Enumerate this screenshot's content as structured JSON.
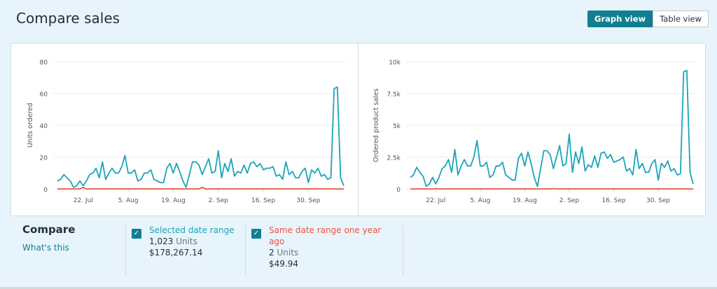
{
  "header": {
    "title": "Compare sales",
    "graph_view": "Graph view",
    "table_view": "Table view",
    "active_view": "Graph view"
  },
  "colors": {
    "current": "#1aa5b8",
    "prior": "#e8553e",
    "accent": "#117f91"
  },
  "chart_data": [
    {
      "type": "line",
      "ylabel": "Units ordered",
      "ylim": [
        0,
        80
      ],
      "yticks": [
        "0",
        "20",
        "40",
        "60",
        "80"
      ],
      "yvalues": [
        0,
        20,
        40,
        60,
        80
      ],
      "x_start": "2019-07-14",
      "x_step": "1 day",
      "xticks": [
        "22. Jul",
        "5. Aug",
        "19. Aug",
        "2. Sep",
        "16. Sep",
        "30. Sep"
      ],
      "xtick_index": [
        8,
        22,
        36,
        50,
        64,
        78
      ],
      "grid": true,
      "series": [
        {
          "name": "Selected date range",
          "color": "#1aa5b8",
          "values": [
            5,
            6,
            9,
            7,
            5,
            1,
            2,
            5,
            2,
            5,
            9,
            10,
            13,
            7,
            17,
            6,
            10,
            13,
            10,
            10,
            14,
            21,
            10,
            10,
            12,
            5,
            6,
            10,
            10,
            12,
            6,
            5,
            4,
            4,
            13,
            16,
            10,
            16,
            11,
            5,
            1,
            9,
            17,
            17,
            15,
            9,
            14,
            19,
            10,
            11,
            24,
            7,
            16,
            11,
            19,
            8,
            11,
            10,
            15,
            10,
            16,
            17,
            14,
            16,
            12,
            13,
            13,
            14,
            8,
            9,
            6,
            17,
            9,
            11,
            7,
            7,
            11,
            13,
            4,
            12,
            10,
            13,
            8,
            9,
            6,
            7,
            63,
            64,
            7,
            2
          ]
        },
        {
          "name": "Same date range one year ago",
          "color": "#e8553e",
          "values": [
            0,
            0,
            0,
            0,
            0,
            0,
            0,
            0,
            1,
            0,
            0,
            0,
            0,
            0,
            0,
            0,
            0,
            0,
            0,
            0,
            0,
            0,
            0,
            0,
            0,
            0,
            0,
            0,
            0,
            0,
            0,
            0,
            0,
            0,
            0,
            0,
            0,
            0,
            0,
            0,
            0,
            0,
            0,
            0,
            0,
            1,
            0,
            0,
            0,
            0,
            0,
            0,
            0,
            0,
            0,
            0,
            0,
            0,
            0,
            0,
            0,
            0,
            0,
            0,
            0,
            0,
            0,
            0,
            0,
            0,
            0,
            0,
            0,
            0,
            0,
            0,
            0,
            0,
            0,
            0,
            0,
            0,
            0,
            0,
            0,
            0,
            0,
            0,
            0,
            0
          ]
        }
      ]
    },
    {
      "type": "line",
      "ylabel": "Ordered product sales",
      "ylim": [
        0,
        10000
      ],
      "yticks": [
        "0",
        "2.5k",
        "5k",
        "7.5k",
        "10k"
      ],
      "yvalues": [
        0,
        2500,
        5000,
        7500,
        10000
      ],
      "x_start": "2019-07-14",
      "x_step": "1 day",
      "xticks": [
        "22. Jul",
        "5. Aug",
        "19. Aug",
        "2. Sep",
        "16. Sep",
        "30. Sep"
      ],
      "xtick_index": [
        8,
        22,
        36,
        50,
        64,
        78
      ],
      "grid": true,
      "series": [
        {
          "name": "Selected date range",
          "color": "#1aa5b8",
          "values": [
            900,
            1100,
            1700,
            1300,
            1000,
            200,
            400,
            900,
            400,
            900,
            1600,
            1800,
            2300,
            1300,
            3100,
            1100,
            1800,
            2300,
            1800,
            1800,
            2500,
            3800,
            1800,
            1800,
            2100,
            900,
            1100,
            1800,
            1800,
            2100,
            1100,
            900,
            700,
            700,
            2400,
            2800,
            1800,
            2900,
            2000,
            900,
            200,
            1600,
            3000,
            3000,
            2700,
            1600,
            2500,
            3400,
            1800,
            2000,
            4300,
            1300,
            2900,
            2000,
            3300,
            1400,
            1900,
            1700,
            2600,
            1700,
            2800,
            2900,
            2400,
            2700,
            2100,
            2200,
            2300,
            2500,
            1400,
            1600,
            1100,
            3100,
            1600,
            2000,
            1300,
            1300,
            2000,
            2300,
            700,
            2000,
            1700,
            2200,
            1400,
            1600,
            1100,
            1200,
            9200,
            9300,
            1300,
            400
          ]
        },
        {
          "name": "Same date range one year ago",
          "color": "#e8553e",
          "values": [
            0,
            0,
            0,
            0,
            0,
            0,
            0,
            0,
            25,
            0,
            0,
            0,
            0,
            0,
            0,
            0,
            0,
            0,
            0,
            0,
            0,
            0,
            0,
            0,
            0,
            0,
            0,
            0,
            0,
            0,
            0,
            0,
            0,
            0,
            0,
            0,
            0,
            0,
            0,
            0,
            0,
            0,
            0,
            0,
            0,
            25,
            0,
            0,
            0,
            0,
            0,
            0,
            0,
            0,
            0,
            0,
            0,
            0,
            0,
            0,
            0,
            0,
            0,
            0,
            0,
            0,
            0,
            0,
            0,
            0,
            0,
            0,
            0,
            0,
            0,
            0,
            0,
            0,
            0,
            0,
            0,
            0,
            0,
            0,
            0,
            0,
            0,
            0,
            0,
            0
          ]
        }
      ]
    }
  ],
  "compare": {
    "title": "Compare",
    "whats_this": "What's this",
    "selected": {
      "label": "Selected date range",
      "units_value": "1,023",
      "units_label": "Units",
      "sales": "$178,267.14",
      "checked": true
    },
    "prior": {
      "label": "Same date range one year ago",
      "units_value": "2",
      "units_label": "Units",
      "sales": "$49.94",
      "checked": true
    }
  }
}
